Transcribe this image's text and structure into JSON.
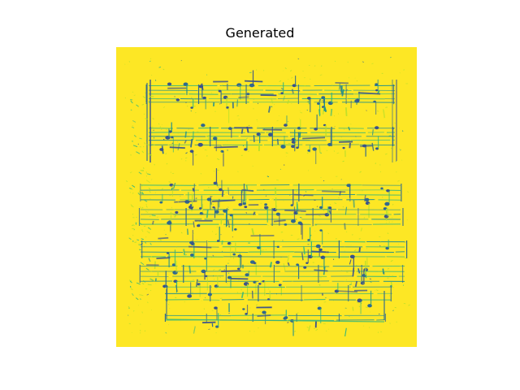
{
  "figure": {
    "title": "Generated",
    "colormap": {
      "background": "#fde725",
      "light": "#b5de2b",
      "mid": "#35b779",
      "teal": "#21918c",
      "dark": "#31688e",
      "darkest": "#3b528b"
    }
  }
}
